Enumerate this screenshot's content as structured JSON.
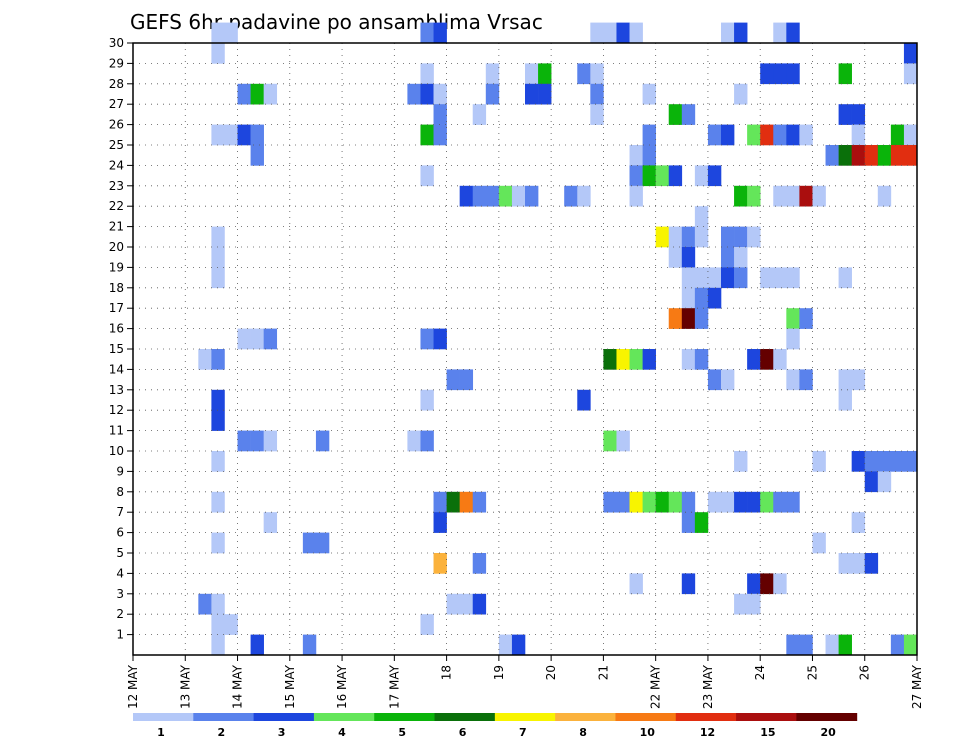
{
  "chart_data": {
    "type": "heatmap",
    "title": "GEFS 6hr padavine po ansamblima Vrsac",
    "x": {
      "unit": "6-hour steps",
      "ticks": [
        "12 MAY",
        "13 MAY",
        "14 MAY",
        "15 MAY",
        "16 MAY",
        "17 MAY",
        "18",
        "19",
        "20",
        "21",
        "22 MAY",
        "23 MAY",
        "24",
        "25",
        "26",
        "27 MAY"
      ],
      "range": [
        0,
        60
      ]
    },
    "y": {
      "label_ticks": [
        "1",
        "2",
        "3",
        "4",
        "5",
        "6",
        "7",
        "8",
        "9",
        "10",
        "11",
        "12",
        "13",
        "14",
        "15",
        "16",
        "17",
        "18",
        "19",
        "20",
        "21",
        "22",
        "23",
        "24",
        "25",
        "26",
        "27",
        "28",
        "29",
        "30"
      ],
      "range": [
        0,
        30
      ]
    },
    "grid": true,
    "legend": {
      "placement": "bottom",
      "labels": [
        "1",
        "2",
        "3",
        "4",
        "5",
        "6",
        "7",
        "8",
        "10",
        "12",
        "15",
        "20"
      ],
      "colors": [
        "#b4c8f8",
        "#5a82ec",
        "#1d46de",
        "#64e65a",
        "#0ab40a",
        "#0a700a",
        "#f8f400",
        "#fbb23c",
        "#f77a14",
        "#e12e10",
        "#aa0e0e",
        "#640000"
      ]
    },
    "cells": [
      {
        "x": 6,
        "y": 30,
        "c": 0
      },
      {
        "x": 7,
        "y": 30,
        "c": 0
      },
      {
        "x": 22,
        "y": 30,
        "c": 1
      },
      {
        "x": 23,
        "y": 30,
        "c": 2
      },
      {
        "x": 35,
        "y": 30,
        "c": 0
      },
      {
        "x": 36,
        "y": 30,
        "c": 0
      },
      {
        "x": 37,
        "y": 30,
        "c": 2
      },
      {
        "x": 38,
        "y": 30,
        "c": 0
      },
      {
        "x": 45,
        "y": 30,
        "c": 0
      },
      {
        "x": 46,
        "y": 30,
        "c": 2
      },
      {
        "x": 49,
        "y": 30,
        "c": 0
      },
      {
        "x": 50,
        "y": 30,
        "c": 2
      },
      {
        "x": 6,
        "y": 29,
        "c": 0
      },
      {
        "x": 59,
        "y": 29,
        "c": 2
      },
      {
        "x": 22,
        "y": 28,
        "c": 0
      },
      {
        "x": 27,
        "y": 28,
        "c": 0
      },
      {
        "x": 30,
        "y": 28,
        "c": 0
      },
      {
        "x": 31,
        "y": 28,
        "c": 4
      },
      {
        "x": 34,
        "y": 28,
        "c": 1
      },
      {
        "x": 35,
        "y": 28,
        "c": 0
      },
      {
        "x": 48,
        "y": 28,
        "c": 2
      },
      {
        "x": 49,
        "y": 28,
        "c": 2
      },
      {
        "x": 50,
        "y": 28,
        "c": 2
      },
      {
        "x": 54,
        "y": 28,
        "c": 4
      },
      {
        "x": 59,
        "y": 28,
        "c": 0
      },
      {
        "x": 8,
        "y": 27,
        "c": 1
      },
      {
        "x": 9,
        "y": 27,
        "c": 4
      },
      {
        "x": 10,
        "y": 27,
        "c": 0
      },
      {
        "x": 21,
        "y": 27,
        "c": 1
      },
      {
        "x": 22,
        "y": 27,
        "c": 2
      },
      {
        "x": 23,
        "y": 27,
        "c": 0
      },
      {
        "x": 27,
        "y": 27,
        "c": 1
      },
      {
        "x": 30,
        "y": 27,
        "c": 2
      },
      {
        "x": 31,
        "y": 27,
        "c": 2
      },
      {
        "x": 35,
        "y": 27,
        "c": 1
      },
      {
        "x": 39,
        "y": 27,
        "c": 0
      },
      {
        "x": 46,
        "y": 27,
        "c": 0
      },
      {
        "x": 23,
        "y": 26,
        "c": 1
      },
      {
        "x": 26,
        "y": 26,
        "c": 0
      },
      {
        "x": 35,
        "y": 26,
        "c": 0
      },
      {
        "x": 41,
        "y": 26,
        "c": 4
      },
      {
        "x": 42,
        "y": 26,
        "c": 1
      },
      {
        "x": 54,
        "y": 26,
        "c": 2
      },
      {
        "x": 55,
        "y": 26,
        "c": 2
      },
      {
        "x": 6,
        "y": 25,
        "c": 0
      },
      {
        "x": 7,
        "y": 25,
        "c": 0
      },
      {
        "x": 8,
        "y": 25,
        "c": 2
      },
      {
        "x": 9,
        "y": 25,
        "c": 1
      },
      {
        "x": 22,
        "y": 25,
        "c": 4
      },
      {
        "x": 23,
        "y": 25,
        "c": 1
      },
      {
        "x": 39,
        "y": 25,
        "c": 1
      },
      {
        "x": 44,
        "y": 25,
        "c": 1
      },
      {
        "x": 45,
        "y": 25,
        "c": 2
      },
      {
        "x": 47,
        "y": 25,
        "c": 3
      },
      {
        "x": 48,
        "y": 25,
        "c": 9
      },
      {
        "x": 49,
        "y": 25,
        "c": 1
      },
      {
        "x": 50,
        "y": 25,
        "c": 2
      },
      {
        "x": 51,
        "y": 25,
        "c": 0
      },
      {
        "x": 55,
        "y": 25,
        "c": 0
      },
      {
        "x": 58,
        "y": 25,
        "c": 4
      },
      {
        "x": 59,
        "y": 25,
        "c": 0
      },
      {
        "x": 9,
        "y": 24,
        "c": 1
      },
      {
        "x": 38,
        "y": 24,
        "c": 0
      },
      {
        "x": 39,
        "y": 24,
        "c": 1
      },
      {
        "x": 53,
        "y": 24,
        "c": 1
      },
      {
        "x": 54,
        "y": 24,
        "c": 5
      },
      {
        "x": 55,
        "y": 24,
        "c": 10
      },
      {
        "x": 56,
        "y": 24,
        "c": 9
      },
      {
        "x": 57,
        "y": 24,
        "c": 4
      },
      {
        "x": 58,
        "y": 24,
        "c": 9
      },
      {
        "x": 59,
        "y": 24,
        "c": 9
      },
      {
        "x": 22,
        "y": 23,
        "c": 0
      },
      {
        "x": 38,
        "y": 23,
        "c": 1
      },
      {
        "x": 39,
        "y": 23,
        "c": 4
      },
      {
        "x": 40,
        "y": 23,
        "c": 3
      },
      {
        "x": 41,
        "y": 23,
        "c": 2
      },
      {
        "x": 43,
        "y": 23,
        "c": 0
      },
      {
        "x": 44,
        "y": 23,
        "c": 2
      },
      {
        "x": 25,
        "y": 22,
        "c": 2
      },
      {
        "x": 26,
        "y": 22,
        "c": 1
      },
      {
        "x": 27,
        "y": 22,
        "c": 1
      },
      {
        "x": 28,
        "y": 22,
        "c": 3
      },
      {
        "x": 29,
        "y": 22,
        "c": 0
      },
      {
        "x": 30,
        "y": 22,
        "c": 1
      },
      {
        "x": 33,
        "y": 22,
        "c": 1
      },
      {
        "x": 34,
        "y": 22,
        "c": 0
      },
      {
        "x": 38,
        "y": 22,
        "c": 0
      },
      {
        "x": 46,
        "y": 22,
        "c": 4
      },
      {
        "x": 47,
        "y": 22,
        "c": 3
      },
      {
        "x": 49,
        "y": 22,
        "c": 0
      },
      {
        "x": 50,
        "y": 22,
        "c": 0
      },
      {
        "x": 51,
        "y": 22,
        "c": 10
      },
      {
        "x": 52,
        "y": 22,
        "c": 0
      },
      {
        "x": 57,
        "y": 22,
        "c": 0
      },
      {
        "x": 43,
        "y": 21,
        "c": 0
      },
      {
        "x": 6,
        "y": 20,
        "c": 0
      },
      {
        "x": 40,
        "y": 20,
        "c": 6
      },
      {
        "x": 41,
        "y": 20,
        "c": 0
      },
      {
        "x": 42,
        "y": 20,
        "c": 1
      },
      {
        "x": 43,
        "y": 20,
        "c": 0
      },
      {
        "x": 45,
        "y": 20,
        "c": 1
      },
      {
        "x": 46,
        "y": 20,
        "c": 1
      },
      {
        "x": 47,
        "y": 20,
        "c": 0
      },
      {
        "x": 6,
        "y": 19,
        "c": 0
      },
      {
        "x": 41,
        "y": 19,
        "c": 0
      },
      {
        "x": 42,
        "y": 19,
        "c": 2
      },
      {
        "x": 45,
        "y": 19,
        "c": 1
      },
      {
        "x": 46,
        "y": 19,
        "c": 0
      },
      {
        "x": 6,
        "y": 18,
        "c": 0
      },
      {
        "x": 42,
        "y": 18,
        "c": 0
      },
      {
        "x": 43,
        "y": 18,
        "c": 0
      },
      {
        "x": 44,
        "y": 18,
        "c": 0
      },
      {
        "x": 45,
        "y": 18,
        "c": 2
      },
      {
        "x": 46,
        "y": 18,
        "c": 1
      },
      {
        "x": 48,
        "y": 18,
        "c": 0
      },
      {
        "x": 49,
        "y": 18,
        "c": 0
      },
      {
        "x": 50,
        "y": 18,
        "c": 0
      },
      {
        "x": 54,
        "y": 18,
        "c": 0
      },
      {
        "x": 42,
        "y": 17,
        "c": 0
      },
      {
        "x": 43,
        "y": 17,
        "c": 1
      },
      {
        "x": 44,
        "y": 17,
        "c": 2
      },
      {
        "x": 41,
        "y": 16,
        "c": 8
      },
      {
        "x": 42,
        "y": 16,
        "c": 11
      },
      {
        "x": 43,
        "y": 16,
        "c": 1
      },
      {
        "x": 50,
        "y": 16,
        "c": 3
      },
      {
        "x": 51,
        "y": 16,
        "c": 1
      },
      {
        "x": 8,
        "y": 15,
        "c": 0
      },
      {
        "x": 9,
        "y": 15,
        "c": 0
      },
      {
        "x": 10,
        "y": 15,
        "c": 1
      },
      {
        "x": 22,
        "y": 15,
        "c": 1
      },
      {
        "x": 23,
        "y": 15,
        "c": 2
      },
      {
        "x": 50,
        "y": 15,
        "c": 0
      },
      {
        "x": 5,
        "y": 14,
        "c": 0
      },
      {
        "x": 6,
        "y": 14,
        "c": 1
      },
      {
        "x": 36,
        "y": 14,
        "c": 5
      },
      {
        "x": 37,
        "y": 14,
        "c": 6
      },
      {
        "x": 38,
        "y": 14,
        "c": 3
      },
      {
        "x": 39,
        "y": 14,
        "c": 2
      },
      {
        "x": 42,
        "y": 14,
        "c": 0
      },
      {
        "x": 43,
        "y": 14,
        "c": 1
      },
      {
        "x": 47,
        "y": 14,
        "c": 2
      },
      {
        "x": 48,
        "y": 14,
        "c": 11
      },
      {
        "x": 49,
        "y": 14,
        "c": 0
      },
      {
        "x": 24,
        "y": 13,
        "c": 1
      },
      {
        "x": 25,
        "y": 13,
        "c": 1
      },
      {
        "x": 44,
        "y": 13,
        "c": 1
      },
      {
        "x": 45,
        "y": 13,
        "c": 0
      },
      {
        "x": 50,
        "y": 13,
        "c": 0
      },
      {
        "x": 51,
        "y": 13,
        "c": 1
      },
      {
        "x": 54,
        "y": 13,
        "c": 0
      },
      {
        "x": 55,
        "y": 13,
        "c": 0
      },
      {
        "x": 6,
        "y": 12,
        "c": 2
      },
      {
        "x": 22,
        "y": 12,
        "c": 0
      },
      {
        "x": 34,
        "y": 12,
        "c": 2
      },
      {
        "x": 54,
        "y": 12,
        "c": 0
      },
      {
        "x": 6,
        "y": 11,
        "c": 2
      },
      {
        "x": 8,
        "y": 10,
        "c": 1
      },
      {
        "x": 9,
        "y": 10,
        "c": 1
      },
      {
        "x": 10,
        "y": 10,
        "c": 0
      },
      {
        "x": 14,
        "y": 10,
        "c": 1
      },
      {
        "x": 21,
        "y": 10,
        "c": 0
      },
      {
        "x": 22,
        "y": 10,
        "c": 1
      },
      {
        "x": 36,
        "y": 10,
        "c": 3
      },
      {
        "x": 37,
        "y": 10,
        "c": 0
      },
      {
        "x": 6,
        "y": 9,
        "c": 0
      },
      {
        "x": 46,
        "y": 9,
        "c": 0
      },
      {
        "x": 52,
        "y": 9,
        "c": 0
      },
      {
        "x": 55,
        "y": 9,
        "c": 2
      },
      {
        "x": 56,
        "y": 9,
        "c": 1
      },
      {
        "x": 57,
        "y": 9,
        "c": 1
      },
      {
        "x": 58,
        "y": 9,
        "c": 1
      },
      {
        "x": 59,
        "y": 9,
        "c": 1
      },
      {
        "x": 56,
        "y": 8,
        "c": 2
      },
      {
        "x": 57,
        "y": 8,
        "c": 0
      },
      {
        "x": 6,
        "y": 7,
        "c": 0
      },
      {
        "x": 23,
        "y": 7,
        "c": 1
      },
      {
        "x": 24,
        "y": 7,
        "c": 5
      },
      {
        "x": 25,
        "y": 7,
        "c": 8
      },
      {
        "x": 26,
        "y": 7,
        "c": 1
      },
      {
        "x": 36,
        "y": 7,
        "c": 1
      },
      {
        "x": 37,
        "y": 7,
        "c": 1
      },
      {
        "x": 38,
        "y": 7,
        "c": 6
      },
      {
        "x": 39,
        "y": 7,
        "c": 3
      },
      {
        "x": 40,
        "y": 7,
        "c": 4
      },
      {
        "x": 41,
        "y": 7,
        "c": 3
      },
      {
        "x": 42,
        "y": 7,
        "c": 1
      },
      {
        "x": 44,
        "y": 7,
        "c": 0
      },
      {
        "x": 45,
        "y": 7,
        "c": 0
      },
      {
        "x": 46,
        "y": 7,
        "c": 2
      },
      {
        "x": 47,
        "y": 7,
        "c": 2
      },
      {
        "x": 48,
        "y": 7,
        "c": 3
      },
      {
        "x": 49,
        "y": 7,
        "c": 1
      },
      {
        "x": 50,
        "y": 7,
        "c": 1
      },
      {
        "x": 10,
        "y": 6,
        "c": 0
      },
      {
        "x": 23,
        "y": 6,
        "c": 2
      },
      {
        "x": 42,
        "y": 6,
        "c": 1
      },
      {
        "x": 43,
        "y": 6,
        "c": 4
      },
      {
        "x": 55,
        "y": 6,
        "c": 0
      },
      {
        "x": 6,
        "y": 5,
        "c": 0
      },
      {
        "x": 13,
        "y": 5,
        "c": 1
      },
      {
        "x": 14,
        "y": 5,
        "c": 1
      },
      {
        "x": 52,
        "y": 5,
        "c": 0
      },
      {
        "x": 23,
        "y": 4,
        "c": 7
      },
      {
        "x": 26,
        "y": 4,
        "c": 1
      },
      {
        "x": 54,
        "y": 4,
        "c": 0
      },
      {
        "x": 55,
        "y": 4,
        "c": 0
      },
      {
        "x": 56,
        "y": 4,
        "c": 2
      },
      {
        "x": 38,
        "y": 3,
        "c": 0
      },
      {
        "x": 42,
        "y": 3,
        "c": 2
      },
      {
        "x": 47,
        "y": 3,
        "c": 2
      },
      {
        "x": 48,
        "y": 3,
        "c": 11
      },
      {
        "x": 49,
        "y": 3,
        "c": 0
      },
      {
        "x": 5,
        "y": 2,
        "c": 1
      },
      {
        "x": 6,
        "y": 2,
        "c": 0
      },
      {
        "x": 24,
        "y": 2,
        "c": 0
      },
      {
        "x": 25,
        "y": 2,
        "c": 0
      },
      {
        "x": 26,
        "y": 2,
        "c": 2
      },
      {
        "x": 46,
        "y": 2,
        "c": 0
      },
      {
        "x": 47,
        "y": 2,
        "c": 0
      },
      {
        "x": 6,
        "y": 1,
        "c": 0
      },
      {
        "x": 7,
        "y": 1,
        "c": 0
      },
      {
        "x": 22,
        "y": 1,
        "c": 0
      },
      {
        "x": 6,
        "y": 0,
        "c": 0
      },
      {
        "x": 9,
        "y": 0,
        "c": 2
      },
      {
        "x": 13,
        "y": 0,
        "c": 1
      },
      {
        "x": 28,
        "y": 0,
        "c": 0
      },
      {
        "x": 29,
        "y": 0,
        "c": 2
      },
      {
        "x": 50,
        "y": 0,
        "c": 1
      },
      {
        "x": 51,
        "y": 0,
        "c": 1
      },
      {
        "x": 53,
        "y": 0,
        "c": 0
      },
      {
        "x": 54,
        "y": 0,
        "c": 4
      },
      {
        "x": 58,
        "y": 0,
        "c": 1
      },
      {
        "x": 59,
        "y": 0,
        "c": 3
      }
    ]
  }
}
